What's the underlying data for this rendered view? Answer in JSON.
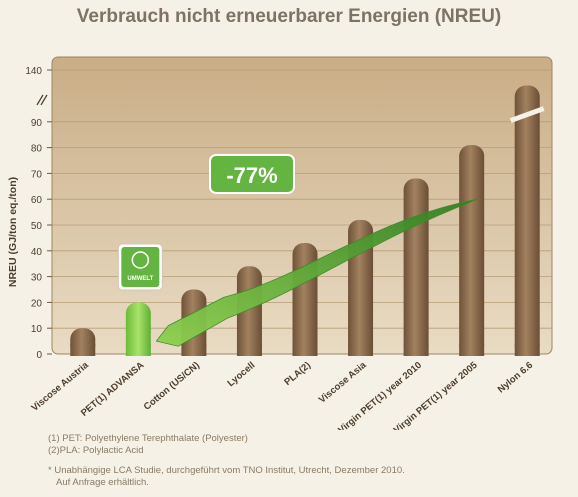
{
  "title": "Verbrauch nicht erneuerbarer Energien (NREU)",
  "chart_data": {
    "type": "bar",
    "ylabel": "NREU (GJ/ton eq./ton)",
    "ylim": [
      0,
      140
    ],
    "yticks": [
      "0",
      "10",
      "20",
      "30",
      "40",
      "50",
      "60",
      "70",
      "80",
      "90",
      "140"
    ],
    "axis_break": "between 90 and 140",
    "categories": [
      "Viscose Austria",
      "PET(1) ADVANSA",
      "Cotton (US/CN)",
      "Lyocell",
      "PLA(2)",
      "Viscose Asia",
      "Virgin PET(1) year 2010",
      "Virgin PET(1) year 2005",
      "Nylon 6.6"
    ],
    "values": [
      10,
      20,
      25,
      34,
      43,
      52,
      68,
      81,
      125
    ],
    "bar_colors": [
      "#8b6a4c",
      "#8fd14f",
      "#8b6a4c",
      "#8b6a4c",
      "#8b6a4c",
      "#8b6a4c",
      "#8b6a4c",
      "#8b6a4c",
      "#8b6a4c"
    ],
    "highlight": "PET(1) ADVANSA",
    "annotation": "-77%",
    "badge_text": "UMWELT",
    "grid": true
  },
  "colors": {
    "plot_bg": "#d8c5a6",
    "bar": "#8b6a4c",
    "highlight_bar": "#8fd14f",
    "arrow": "#5db13b",
    "badge": "#63b440"
  },
  "footnotes": {
    "fn1": "(1) PET: Polyethylene Terephthalate (Polyester)",
    "fn2": "(2)PLA: Polylactic Acid",
    "fn3": "* Unabhängige LCA Studie, durchgeführt vom TNO Institut, Utrecht, Dezember 2010.",
    "fn4": "Auf Anfrage erhältlich."
  }
}
